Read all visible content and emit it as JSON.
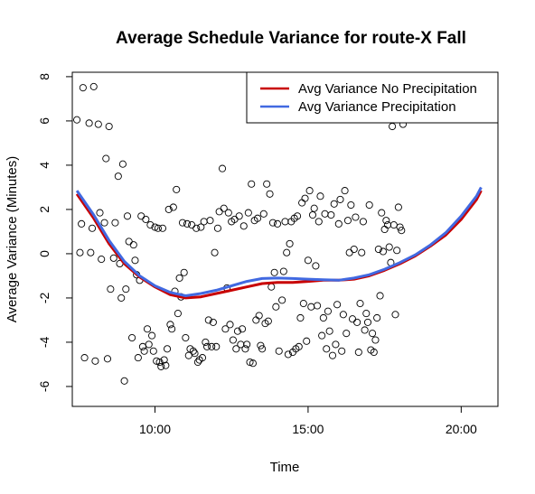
{
  "chart_data": {
    "type": "scatter",
    "title": "Average Schedule Variance for route-X Fall",
    "xlabel": "Time",
    "ylabel": "Average Variance (Minutes)",
    "xlim": [
      7.3,
      21.2
    ],
    "ylim": [
      -6.9,
      8.2
    ],
    "x_ticks": [
      {
        "value": 10,
        "label": "10:00"
      },
      {
        "value": 15,
        "label": "15:00"
      },
      {
        "value": 20,
        "label": "20:00"
      }
    ],
    "y_ticks": [
      {
        "value": -6,
        "label": "-6"
      },
      {
        "value": -4,
        "label": "-4"
      },
      {
        "value": -2,
        "label": "-2"
      },
      {
        "value": 0,
        "label": "0"
      },
      {
        "value": 2,
        "label": "2"
      },
      {
        "value": 4,
        "label": "4"
      },
      {
        "value": 6,
        "label": "6"
      },
      {
        "value": 8,
        "label": "8"
      }
    ],
    "grid": false,
    "legend_position": "top-right",
    "points": [
      [
        7.45,
        6.05
      ],
      [
        7.55,
        0.05
      ],
      [
        7.6,
        1.35
      ],
      [
        7.65,
        7.5
      ],
      [
        7.7,
        -4.7
      ],
      [
        7.85,
        5.9
      ],
      [
        7.9,
        0.05
      ],
      [
        7.95,
        1.15
      ],
      [
        8.0,
        7.55
      ],
      [
        8.05,
        -4.85
      ],
      [
        8.15,
        5.85
      ],
      [
        8.2,
        1.85
      ],
      [
        8.25,
        -0.25
      ],
      [
        8.35,
        1.4
      ],
      [
        8.4,
        4.3
      ],
      [
        8.45,
        -4.75
      ],
      [
        8.5,
        5.75
      ],
      [
        8.55,
        -1.6
      ],
      [
        8.65,
        -0.2
      ],
      [
        8.7,
        1.4
      ],
      [
        8.8,
        3.5
      ],
      [
        8.85,
        -0.45
      ],
      [
        8.9,
        -2.0
      ],
      [
        8.95,
        4.05
      ],
      [
        9.0,
        -5.75
      ],
      [
        9.05,
        -1.6
      ],
      [
        9.1,
        1.7
      ],
      [
        9.15,
        0.55
      ],
      [
        9.25,
        -3.8
      ],
      [
        9.3,
        0.4
      ],
      [
        9.35,
        -0.3
      ],
      [
        9.4,
        -0.95
      ],
      [
        9.45,
        -4.7
      ],
      [
        9.5,
        -1.2
      ],
      [
        9.55,
        1.7
      ],
      [
        9.6,
        -4.2
      ],
      [
        9.65,
        -4.4
      ],
      [
        9.7,
        1.55
      ],
      [
        9.75,
        -3.4
      ],
      [
        9.8,
        -4.1
      ],
      [
        9.85,
        1.3
      ],
      [
        9.9,
        -3.7
      ],
      [
        9.95,
        -4.4
      ],
      [
        10.0,
        1.2
      ],
      [
        10.05,
        -4.85
      ],
      [
        10.1,
        1.15
      ],
      [
        10.15,
        -4.9
      ],
      [
        10.2,
        -5.1
      ],
      [
        10.25,
        1.15
      ],
      [
        10.3,
        -4.8
      ],
      [
        10.35,
        -5.05
      ],
      [
        10.4,
        -4.3
      ],
      [
        10.45,
        2.0
      ],
      [
        10.5,
        -3.2
      ],
      [
        10.55,
        -3.4
      ],
      [
        10.6,
        2.1
      ],
      [
        10.65,
        -1.7
      ],
      [
        10.7,
        2.9
      ],
      [
        10.75,
        -2.7
      ],
      [
        10.8,
        -1.1
      ],
      [
        10.85,
        -1.95
      ],
      [
        10.9,
        1.4
      ],
      [
        10.95,
        -0.85
      ],
      [
        11.0,
        -3.8
      ],
      [
        11.05,
        1.35
      ],
      [
        11.1,
        -4.6
      ],
      [
        11.15,
        -4.3
      ],
      [
        11.2,
        1.3
      ],
      [
        11.25,
        -4.4
      ],
      [
        11.3,
        -4.5
      ],
      [
        11.35,
        1.15
      ],
      [
        11.4,
        -4.9
      ],
      [
        11.45,
        -4.8
      ],
      [
        11.5,
        1.2
      ],
      [
        11.55,
        -4.7
      ],
      [
        11.6,
        1.45
      ],
      [
        11.65,
        -4.0
      ],
      [
        11.7,
        -4.2
      ],
      [
        11.75,
        -3.0
      ],
      [
        11.8,
        1.5
      ],
      [
        11.85,
        -4.2
      ],
      [
        11.9,
        -3.1
      ],
      [
        11.95,
        0.05
      ],
      [
        12.0,
        -4.2
      ],
      [
        12.05,
        1.15
      ],
      [
        12.1,
        1.9
      ],
      [
        12.2,
        3.85
      ],
      [
        12.25,
        2.05
      ],
      [
        12.3,
        -3.4
      ],
      [
        12.35,
        -1.55
      ],
      [
        12.4,
        1.85
      ],
      [
        12.45,
        -3.2
      ],
      [
        12.5,
        1.45
      ],
      [
        12.55,
        -3.9
      ],
      [
        12.6,
        1.55
      ],
      [
        12.65,
        -4.3
      ],
      [
        12.7,
        -3.5
      ],
      [
        12.75,
        1.7
      ],
      [
        12.8,
        -4.1
      ],
      [
        12.85,
        -3.4
      ],
      [
        12.9,
        1.25
      ],
      [
        12.95,
        -4.3
      ],
      [
        13.0,
        -4.1
      ],
      [
        13.05,
        1.85
      ],
      [
        13.1,
        -4.9
      ],
      [
        13.15,
        3.15
      ],
      [
        13.2,
        -4.95
      ],
      [
        13.25,
        1.5
      ],
      [
        13.3,
        -3.0
      ],
      [
        13.35,
        1.6
      ],
      [
        13.4,
        -2.8
      ],
      [
        13.45,
        -4.15
      ],
      [
        13.5,
        -4.3
      ],
      [
        13.55,
        1.8
      ],
      [
        13.6,
        -3.15
      ],
      [
        13.65,
        3.15
      ],
      [
        13.7,
        -3.05
      ],
      [
        13.75,
        2.7
      ],
      [
        13.8,
        -1.5
      ],
      [
        13.85,
        1.4
      ],
      [
        13.9,
        -0.85
      ],
      [
        13.95,
        -2.4
      ],
      [
        14.0,
        1.35
      ],
      [
        14.05,
        -4.4
      ],
      [
        14.15,
        -2.1
      ],
      [
        14.2,
        -0.8
      ],
      [
        14.25,
        1.45
      ],
      [
        14.3,
        0.05
      ],
      [
        14.35,
        -4.55
      ],
      [
        14.4,
        0.45
      ],
      [
        14.45,
        1.45
      ],
      [
        14.5,
        -4.45
      ],
      [
        14.55,
        1.6
      ],
      [
        14.6,
        -4.3
      ],
      [
        14.65,
        1.7
      ],
      [
        14.7,
        -4.2
      ],
      [
        14.75,
        -2.9
      ],
      [
        14.8,
        2.3
      ],
      [
        14.85,
        -2.25
      ],
      [
        14.9,
        2.5
      ],
      [
        14.95,
        -3.95
      ],
      [
        15.0,
        -0.3
      ],
      [
        15.05,
        2.85
      ],
      [
        15.1,
        -2.4
      ],
      [
        15.15,
        1.75
      ],
      [
        15.2,
        2.05
      ],
      [
        15.25,
        -0.55
      ],
      [
        15.3,
        -2.35
      ],
      [
        15.35,
        1.45
      ],
      [
        15.4,
        2.6
      ],
      [
        15.45,
        -3.7
      ],
      [
        15.5,
        -2.9
      ],
      [
        15.55,
        1.8
      ],
      [
        15.6,
        -4.3
      ],
      [
        15.65,
        -2.6
      ],
      [
        15.7,
        -3.5
      ],
      [
        15.75,
        1.75
      ],
      [
        15.8,
        -4.6
      ],
      [
        15.85,
        2.25
      ],
      [
        15.9,
        -4.1
      ],
      [
        15.95,
        -2.3
      ],
      [
        16.0,
        1.35
      ],
      [
        16.05,
        2.45
      ],
      [
        16.1,
        -4.4
      ],
      [
        16.15,
        -2.75
      ],
      [
        16.2,
        2.85
      ],
      [
        16.25,
        -3.6
      ],
      [
        16.3,
        1.5
      ],
      [
        16.35,
        0.05
      ],
      [
        16.4,
        2.2
      ],
      [
        16.45,
        -2.95
      ],
      [
        16.5,
        0.2
      ],
      [
        16.55,
        1.65
      ],
      [
        16.6,
        -3.1
      ],
      [
        16.65,
        -4.45
      ],
      [
        16.7,
        -2.25
      ],
      [
        16.75,
        0.05
      ],
      [
        16.8,
        1.45
      ],
      [
        16.85,
        -3.45
      ],
      [
        16.9,
        -2.7
      ],
      [
        16.95,
        -3.1
      ],
      [
        17.0,
        2.2
      ],
      [
        17.05,
        -4.35
      ],
      [
        17.1,
        -3.6
      ],
      [
        17.15,
        -4.45
      ],
      [
        17.2,
        -3.9
      ],
      [
        17.25,
        -2.9
      ],
      [
        17.3,
        0.2
      ],
      [
        17.35,
        -1.9
      ],
      [
        17.4,
        1.85
      ],
      [
        17.45,
        0.1
      ],
      [
        17.5,
        1.1
      ],
      [
        17.55,
        1.5
      ],
      [
        17.6,
        1.3
      ],
      [
        17.65,
        0.3
      ],
      [
        17.7,
        -0.4
      ],
      [
        17.75,
        5.75
      ],
      [
        17.8,
        1.3
      ],
      [
        17.85,
        -2.75
      ],
      [
        17.9,
        0.15
      ],
      [
        17.95,
        2.1
      ],
      [
        18.0,
        1.2
      ],
      [
        18.05,
        1.05
      ],
      [
        18.1,
        5.85
      ]
    ],
    "series": [
      {
        "name": "Avg Variance No Precipitation",
        "color": "#c80000",
        "x": [
          7.45,
          8.0,
          8.5,
          9.0,
          9.5,
          10.0,
          10.5,
          11.0,
          11.5,
          12.0,
          12.5,
          13.0,
          13.5,
          14.0,
          14.5,
          15.0,
          15.5,
          16.0,
          16.5,
          17.0,
          17.5,
          18.0,
          18.5,
          19.0,
          19.5,
          20.0,
          20.5,
          20.65
        ],
        "y": [
          2.7,
          1.6,
          0.45,
          -0.45,
          -1.05,
          -1.5,
          -1.85,
          -2.0,
          -1.95,
          -1.8,
          -1.65,
          -1.5,
          -1.35,
          -1.3,
          -1.3,
          -1.25,
          -1.2,
          -1.2,
          -1.15,
          -1.0,
          -0.75,
          -0.45,
          -0.1,
          0.35,
          0.85,
          1.55,
          2.45,
          2.85
        ]
      },
      {
        "name": "Avg Variance Precipitation",
        "color": "#4169e1",
        "x": [
          7.45,
          8.0,
          8.5,
          9.0,
          9.5,
          10.0,
          10.5,
          11.0,
          11.5,
          12.0,
          12.5,
          13.0,
          13.5,
          14.0,
          14.5,
          15.0,
          15.5,
          16.0,
          16.5,
          17.0,
          17.5,
          18.0,
          18.5,
          19.0,
          19.5,
          20.0,
          20.5,
          20.65
        ],
        "y": [
          2.85,
          1.75,
          0.6,
          -0.35,
          -1.0,
          -1.45,
          -1.75,
          -1.9,
          -1.8,
          -1.65,
          -1.45,
          -1.25,
          -1.12,
          -1.1,
          -1.12,
          -1.15,
          -1.18,
          -1.2,
          -1.1,
          -0.95,
          -0.7,
          -0.4,
          -0.05,
          0.4,
          0.95,
          1.7,
          2.6,
          3.0
        ]
      }
    ]
  }
}
